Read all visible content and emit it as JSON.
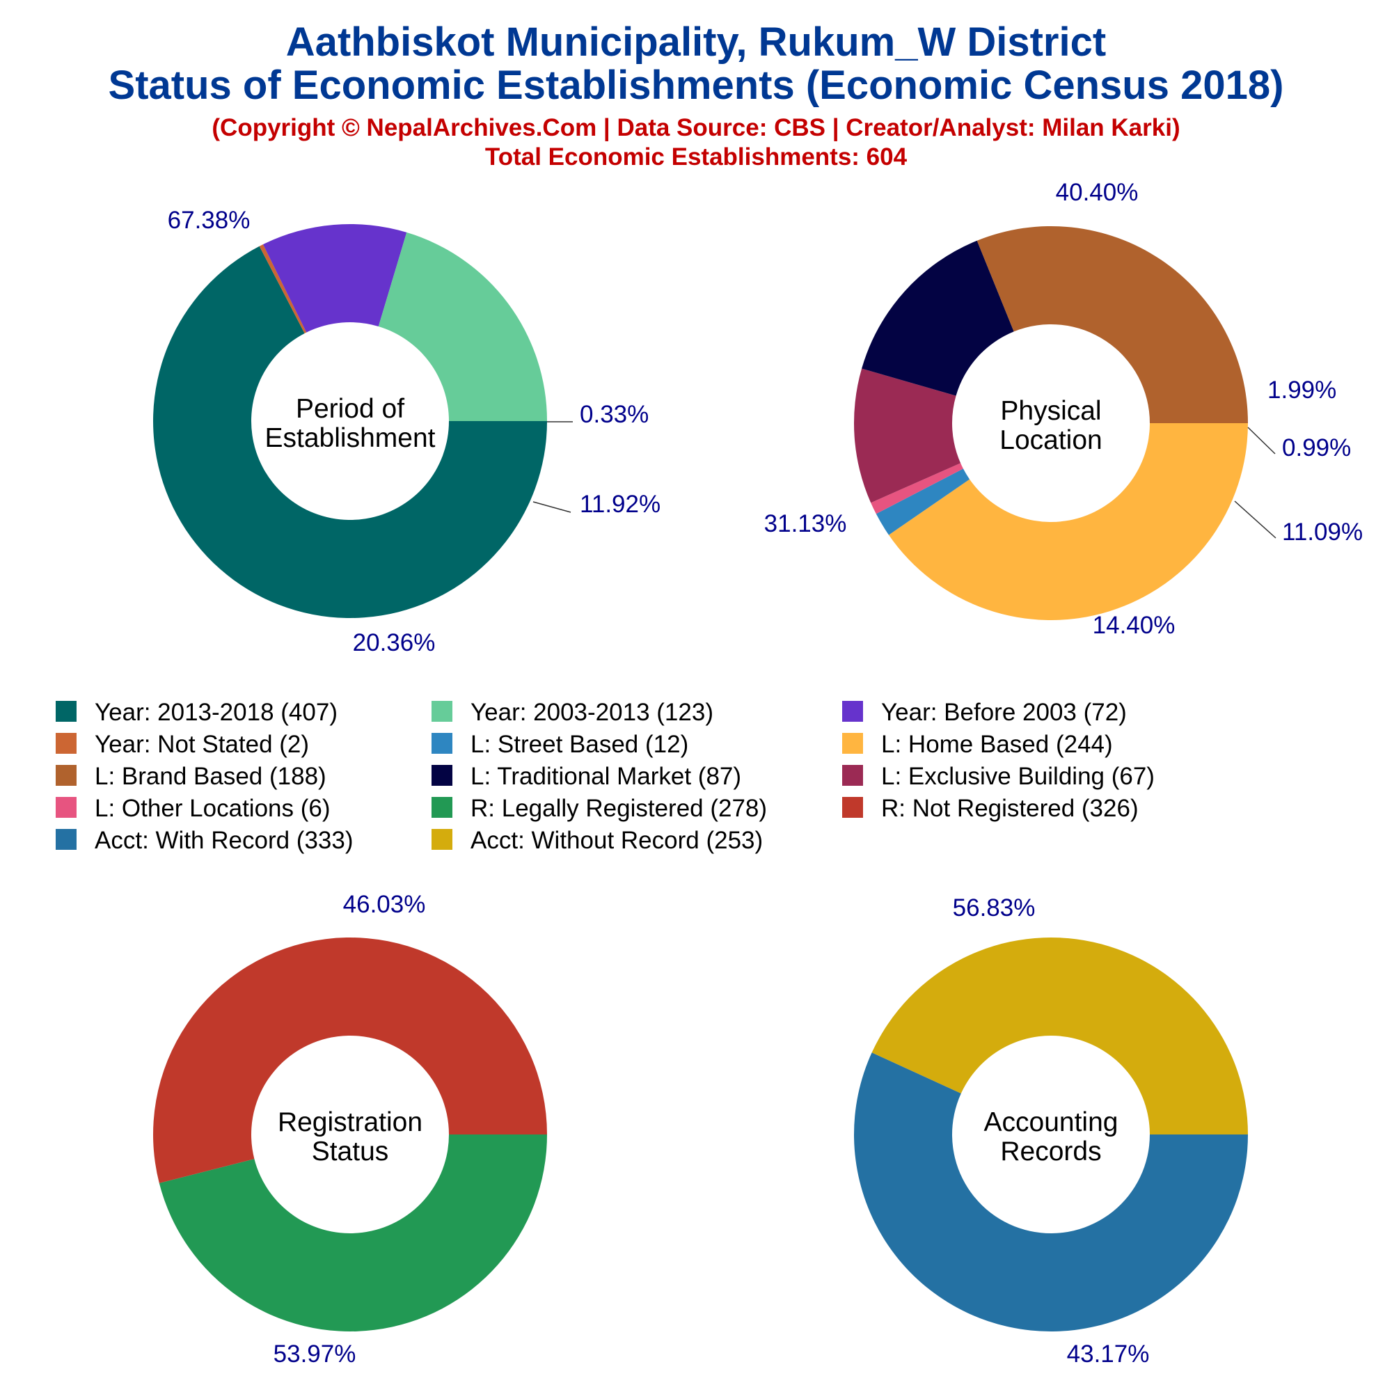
{
  "header": {
    "title_line1": "Aathbiskot Municipality, Rukum_W District",
    "title_line2": "Status of Economic Establishments (Economic Census 2018)",
    "credit": "(Copyright © NepalArchives.Com | Data Source: CBS | Creator/Analyst: Milan Karki)",
    "total": "Total Economic Establishments: 604"
  },
  "chart_data": [
    {
      "type": "pie",
      "donut": true,
      "center_label": [
        "Period of",
        "Establishment"
      ],
      "slices": [
        {
          "label": "Year: 2013-2018 (407)",
          "value": 407,
          "percent_label": "67.38%",
          "color": "#006666"
        },
        {
          "label": "Year: Not Stated (2)",
          "value": 2,
          "percent_label": "0.33%",
          "color": "#cc6633"
        },
        {
          "label": "Year: Before 2003 (72)",
          "value": 72,
          "percent_label": "11.92%",
          "color": "#6633cc"
        },
        {
          "label": "Year: 2003-2013 (123)",
          "value": 123,
          "percent_label": "20.36%",
          "color": "#66cc99"
        }
      ]
    },
    {
      "type": "pie",
      "donut": true,
      "center_label": [
        "Physical",
        "Location"
      ],
      "slices": [
        {
          "label": "L: Home Based (244)",
          "value": 244,
          "percent_label": "40.40%",
          "color": "#ffb540"
        },
        {
          "label": "L: Street Based (12)",
          "value": 12,
          "percent_label": "1.99%",
          "color": "#2e86c1"
        },
        {
          "label": "L: Other Locations (6)",
          "value": 6,
          "percent_label": "0.99%",
          "color": "#e75480"
        },
        {
          "label": "L: Exclusive Building (67)",
          "value": 67,
          "percent_label": "11.09%",
          "color": "#9b2a54"
        },
        {
          "label": "L: Traditional Market (87)",
          "value": 87,
          "percent_label": "14.40%",
          "color": "#030343"
        },
        {
          "label": "L: Brand Based (188)",
          "value": 188,
          "percent_label": "31.13%",
          "color": "#b0622d"
        }
      ]
    },
    {
      "type": "pie",
      "donut": true,
      "center_label": [
        "Registration",
        "Status"
      ],
      "slices": [
        {
          "label": "R: Legally Registered (278)",
          "value": 278,
          "percent_label": "46.03%",
          "color": "#229954"
        },
        {
          "label": "R: Not Registered (326)",
          "value": 326,
          "percent_label": "53.97%",
          "color": "#c0392b"
        }
      ]
    },
    {
      "type": "pie",
      "donut": true,
      "center_label": [
        "Accounting",
        "Records"
      ],
      "slices": [
        {
          "label": "Acct: With Record (333)",
          "value": 333,
          "percent_label": "56.83%",
          "color": "#2471a3"
        },
        {
          "label": "Acct: Without Record (253)",
          "value": 253,
          "percent_label": "43.17%",
          "color": "#d4ac0d"
        }
      ]
    }
  ],
  "legend": [
    {
      "label": "Year: 2013-2018 (407)",
      "color": "#006666"
    },
    {
      "label": "Year: 2003-2013 (123)",
      "color": "#66cc99"
    },
    {
      "label": "Year: Before 2003 (72)",
      "color": "#6633cc"
    },
    {
      "label": "Year: Not Stated (2)",
      "color": "#cc6633"
    },
    {
      "label": "L: Street Based (12)",
      "color": "#2e86c1"
    },
    {
      "label": "L: Home Based (244)",
      "color": "#ffb540"
    },
    {
      "label": "L: Brand Based (188)",
      "color": "#b0622d"
    },
    {
      "label": "L: Traditional Market (87)",
      "color": "#030343"
    },
    {
      "label": "L: Exclusive Building (67)",
      "color": "#9b2a54"
    },
    {
      "label": "L: Other Locations (6)",
      "color": "#e75480"
    },
    {
      "label": "R: Legally Registered (278)",
      "color": "#229954"
    },
    {
      "label": "R: Not Registered (326)",
      "color": "#c0392b"
    },
    {
      "label": "Acct: With Record (333)",
      "color": "#2471a3"
    },
    {
      "label": "Acct: Without Record (253)",
      "color": "#d4ac0d"
    }
  ]
}
